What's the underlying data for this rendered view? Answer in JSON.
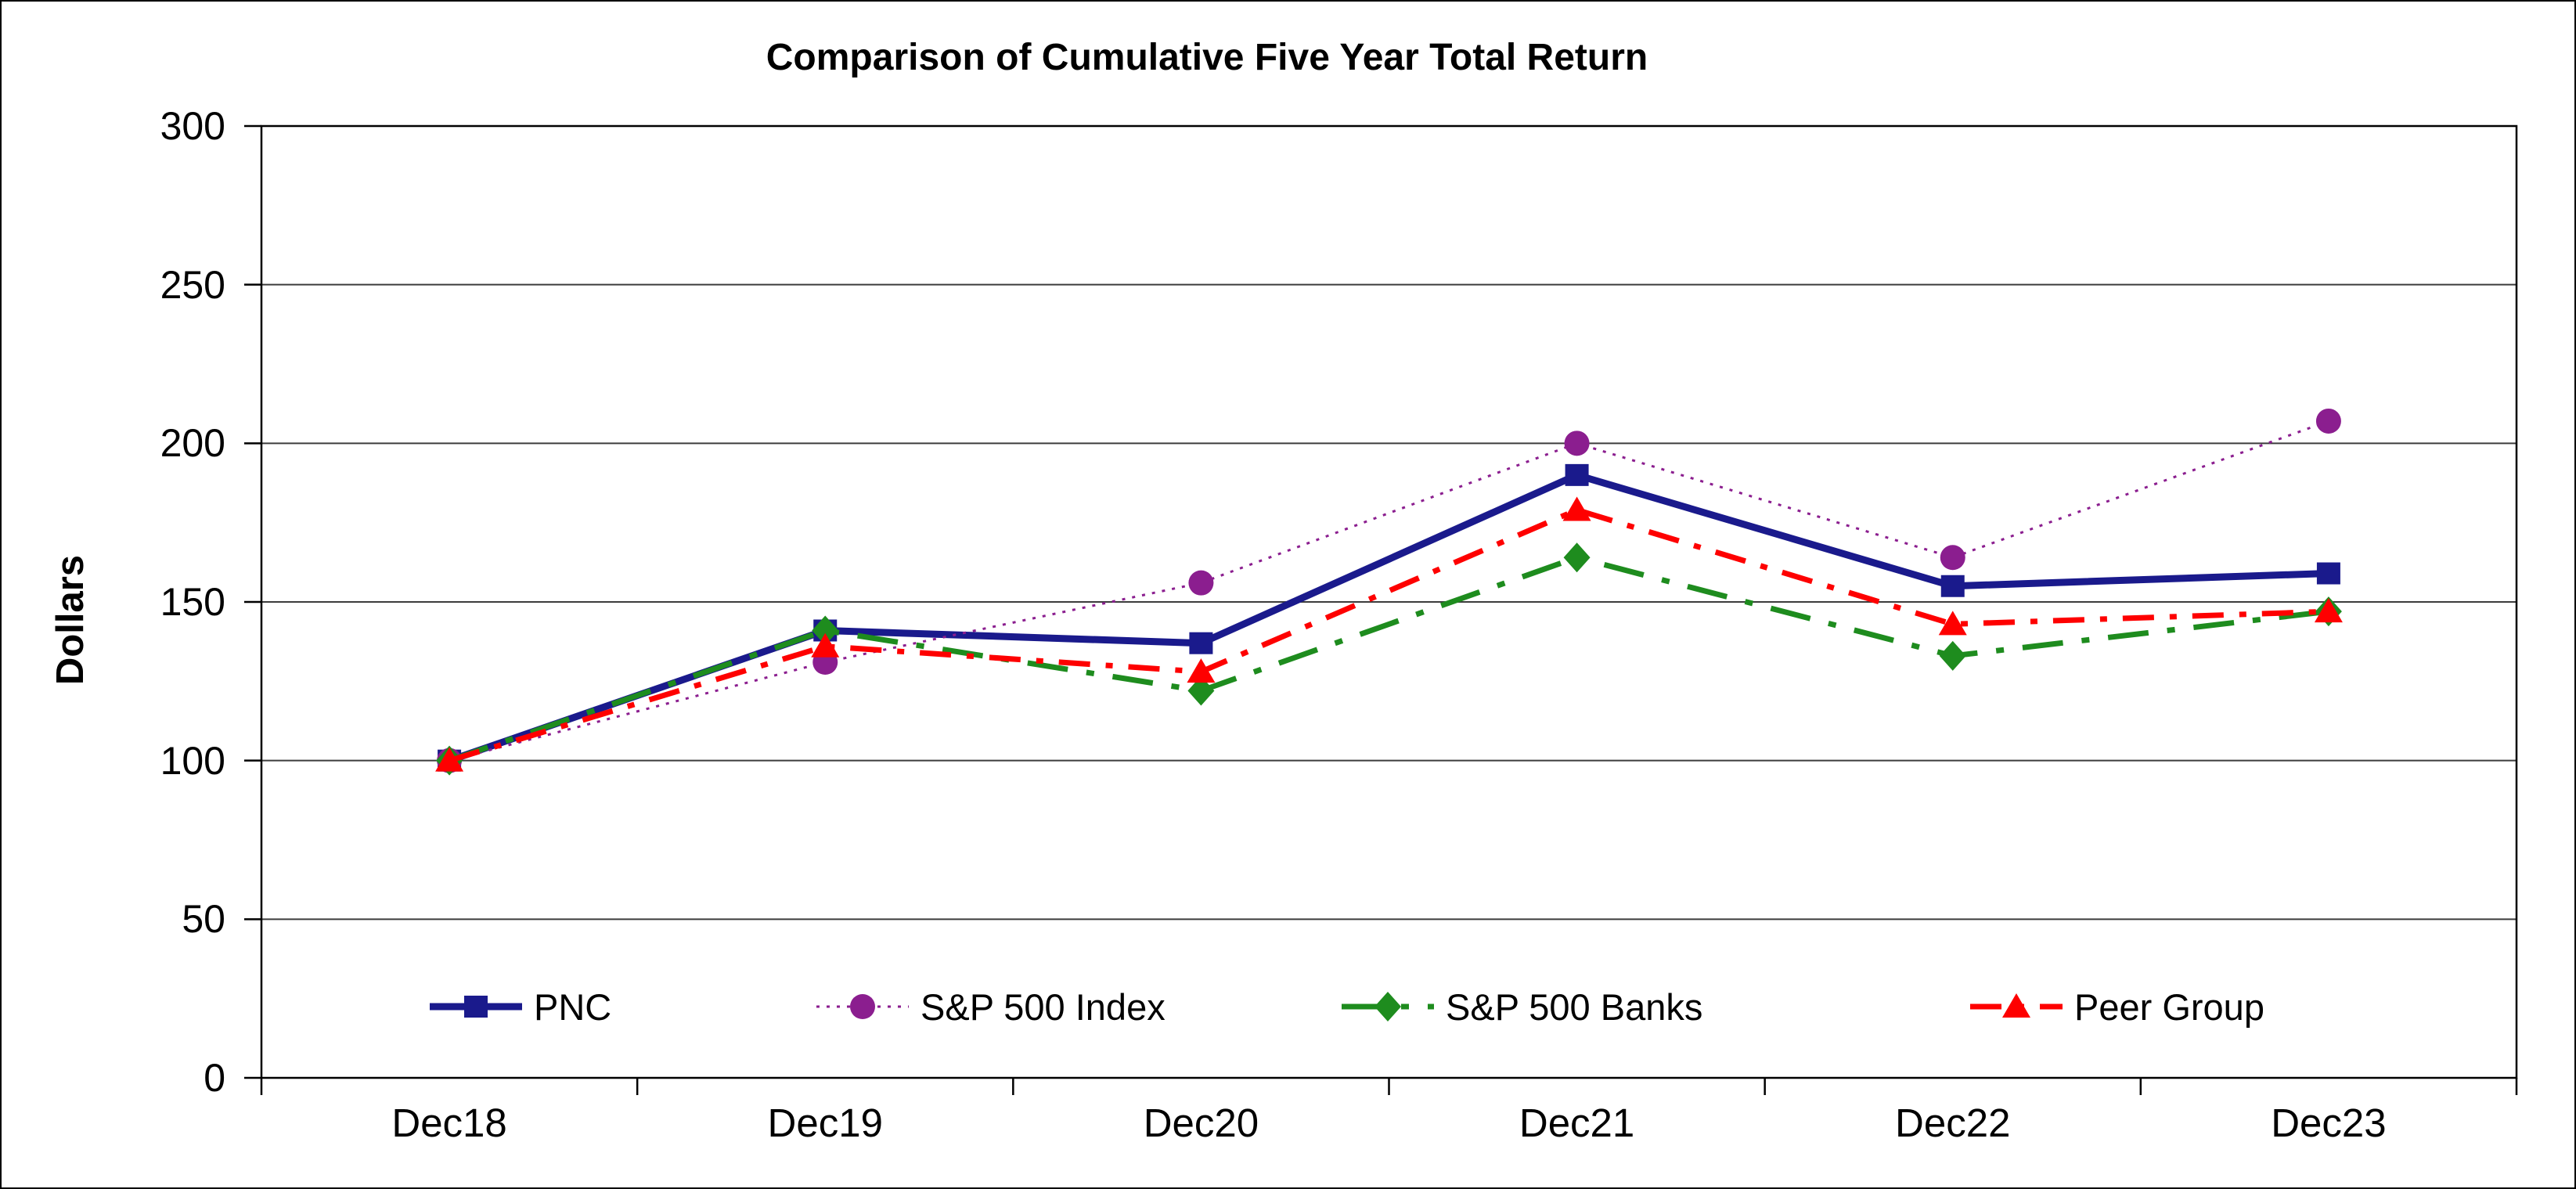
{
  "chart_data": {
    "type": "line",
    "title": "Comparison of Cumulative Five Year Total Return",
    "xlabel": "",
    "ylabel": "Dollars",
    "categories": [
      "Dec18",
      "Dec19",
      "Dec20",
      "Dec21",
      "Dec22",
      "Dec23"
    ],
    "ylim": [
      0,
      300
    ],
    "ytick_interval": 50,
    "grid": "horizontal",
    "legend_position": "bottom-inside",
    "series": [
      {
        "name": "PNC",
        "values": [
          100,
          141,
          137,
          190,
          155,
          159
        ],
        "color": "#1A1A8C",
        "marker": "square",
        "line_style": "solid",
        "line_width": 9
      },
      {
        "name": "S&P 500 Index",
        "values": [
          100,
          131,
          156,
          200,
          164,
          207
        ],
        "color": "#8B1E8F",
        "marker": "circle",
        "line_style": "dotted",
        "line_width": 3
      },
      {
        "name": "S&P 500 Banks",
        "values": [
          100,
          141,
          122,
          164,
          133,
          147
        ],
        "color": "#1E8C1E",
        "marker": "diamond",
        "line_style": "long-dash-dot",
        "line_width": 7
      },
      {
        "name": "Peer Group",
        "values": [
          100,
          136,
          128,
          179,
          143,
          147
        ],
        "color": "#FE0000",
        "marker": "triangle",
        "line_style": "dash-dot",
        "line_width": 7
      }
    ]
  },
  "y_axis_ticks": [
    "300",
    "250",
    "200",
    "150",
    "100",
    "50",
    "0"
  ],
  "colors": {
    "frame": "#000000",
    "gridline": "#3C3C3C",
    "background": "#FFFFFF"
  }
}
